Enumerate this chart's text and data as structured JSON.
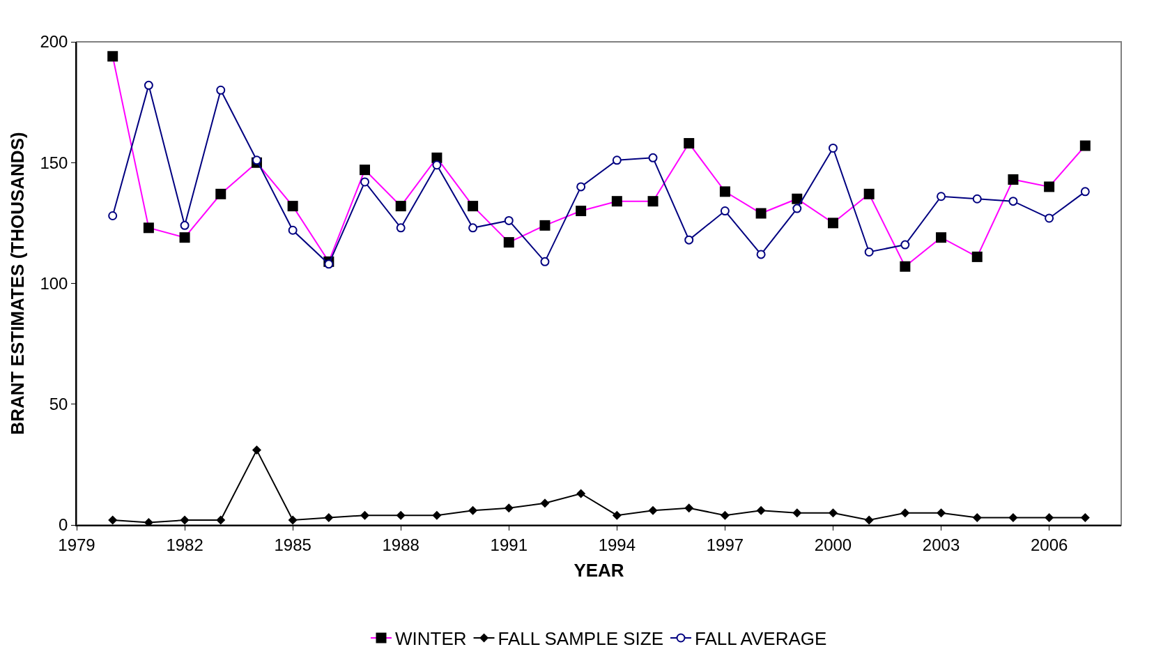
{
  "chart_data": {
    "type": "line",
    "xlabel": "YEAR",
    "ylabel": "BRANT ESTIMATES (THOUSANDS)",
    "x": [
      1980,
      1981,
      1982,
      1983,
      1984,
      1985,
      1986,
      1987,
      1988,
      1989,
      1990,
      1991,
      1992,
      1993,
      1994,
      1995,
      1996,
      1997,
      1998,
      1999,
      2000,
      2001,
      2002,
      2003,
      2004,
      2005,
      2006,
      2007
    ],
    "series": [
      {
        "name": "WINTER",
        "color": "#ff00ff",
        "marker": "square",
        "values": [
          194,
          123,
          119,
          137,
          150,
          132,
          109,
          147,
          132,
          152,
          132,
          117,
          124,
          130,
          134,
          134,
          158,
          138,
          129,
          135,
          125,
          137,
          107,
          119,
          111,
          143,
          140,
          157
        ]
      },
      {
        "name": "FALL SAMPLE SIZE",
        "color": "#000000",
        "marker": "diamond",
        "values": [
          2,
          1,
          2,
          2,
          31,
          2,
          3,
          4,
          4,
          4,
          6,
          7,
          9,
          13,
          4,
          6,
          7,
          4,
          6,
          5,
          5,
          2,
          5,
          5,
          3,
          3,
          3,
          3
        ]
      },
      {
        "name": "FALL AVERAGE",
        "color": "#000080",
        "marker": "circle",
        "values": [
          128,
          182,
          124,
          180,
          151,
          122,
          108,
          142,
          123,
          149,
          123,
          126,
          109,
          140,
          151,
          152,
          118,
          130,
          112,
          131,
          156,
          113,
          116,
          136,
          135,
          134,
          127,
          138
        ]
      }
    ],
    "xlim": [
      1979,
      2008
    ],
    "xticks": [
      1979,
      1982,
      1985,
      1988,
      1991,
      1994,
      1997,
      2000,
      2003,
      2006
    ],
    "ylim": [
      0,
      200
    ],
    "yticks": [
      0,
      50,
      100,
      150,
      200
    ],
    "grid": false,
    "legend": "bottom",
    "line_style": "solid"
  }
}
